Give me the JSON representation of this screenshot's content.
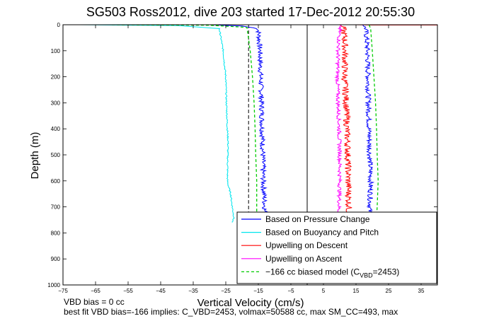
{
  "chart_data": {
    "type": "line",
    "title": "SG503 Ross2012, dive 203 started 17-Dec-2012 20:55:30",
    "xlabel": "Vertical Velocity (cm/s)",
    "ylabel": "Depth (m)",
    "xlim": [
      -75,
      40
    ],
    "ylim": [
      0,
      1000
    ],
    "y_reversed": true,
    "grid": false,
    "x_ticks": [
      -75,
      -65,
      -55,
      -45,
      -35,
      -25,
      -15,
      -5,
      5,
      15,
      25,
      35
    ],
    "y_ticks": [
      0,
      100,
      200,
      300,
      400,
      500,
      600,
      700,
      800,
      900,
      1000
    ],
    "legend_position": "bottom-right",
    "legend_entries": [
      {
        "label": "Based on Pressure Change",
        "color": "#0000ff",
        "style": "solid"
      },
      {
        "label": "Based on Buoyancy and Pitch",
        "color": "#00e5ee",
        "style": "solid"
      },
      {
        "label": "Upwelling on Descent",
        "color": "#ff0000",
        "style": "solid"
      },
      {
        "label": "Upwelling on Ascent",
        "color": "#ff00ff",
        "style": "solid"
      },
      {
        "label": "−166 cc biased model (C",
        "sub": "VBD",
        "suffix": "=2453)",
        "color": "#00cc00",
        "style": "dashed"
      }
    ],
    "reference_lines": [
      {
        "x": -18,
        "style": "dashed",
        "color": "#000000"
      },
      {
        "x": 0,
        "style": "solid",
        "color": "#000000"
      }
    ],
    "series": [
      {
        "name": "Based on Pressure Change (descent)",
        "color": "#0000ff",
        "noise": 0.8,
        "x": [
          -30,
          -20,
          -15,
          -14.5,
          -14.3,
          -14,
          -13.8,
          -13.6,
          -13.5,
          -13,
          -13.2
        ],
        "y": [
          0,
          5,
          15,
          100,
          200,
          300,
          400,
          500,
          600,
          700,
          760
        ]
      },
      {
        "name": "Based on Pressure Change (ascent)",
        "color": "#0000ff",
        "noise": 0.8,
        "x": [
          17,
          18,
          18.5,
          18.7,
          18.8,
          19,
          19.2,
          19.5,
          19.3,
          18.8
        ],
        "y": [
          0,
          15,
          100,
          200,
          300,
          400,
          500,
          600,
          700,
          760
        ]
      },
      {
        "name": "Based on Buoyancy and Pitch",
        "color": "#00e5ee",
        "noise": 0.2,
        "x": [
          -70,
          -40,
          -27,
          -26.5,
          -25.8,
          -25,
          -24.8,
          -24.5,
          -24.3,
          -24.4,
          -24.5,
          -24.2,
          -23.5,
          -23,
          -22.5,
          -23
        ],
        "y": [
          0,
          3,
          15,
          50,
          100,
          200,
          300,
          400,
          450,
          500,
          600,
          620,
          650,
          700,
          740,
          760
        ]
      },
      {
        "name": "Upwelling on Descent",
        "color": "#ff0000",
        "noise": 1.0,
        "x": [
          10,
          11,
          11.5,
          11.6,
          11.5,
          12,
          12.2,
          12.5,
          12.6,
          12.8,
          12.5
        ],
        "y": [
          0,
          10,
          50,
          100,
          200,
          300,
          400,
          500,
          600,
          700,
          760
        ]
      },
      {
        "name": "Upwelling on Ascent",
        "color": "#ff00ff",
        "noise": 0.6,
        "x": [
          10.5,
          10,
          9.5,
          9.3,
          9.5,
          9.8,
          10,
          10,
          9.8,
          9.5
        ],
        "y": [
          0,
          15,
          100,
          200,
          300,
          400,
          500,
          600,
          700,
          760
        ]
      },
      {
        "name": "Upwelling near surface",
        "color": "#ff0000",
        "noise": 0,
        "x": [
          14,
          20,
          40
        ],
        "y": [
          0,
          1,
          1
        ]
      },
      {
        "name": "-166 cc biased model (descent)",
        "color": "#00cc00",
        "dashed": true,
        "noise": 0,
        "x": [
          -60,
          -30,
          -18.5,
          -17.5,
          -16.8,
          -16.3,
          -16,
          -15.8,
          -15.5,
          -15.5
        ],
        "y": [
          0,
          2,
          10,
          100,
          200,
          300,
          400,
          500,
          600,
          760
        ]
      },
      {
        "name": "-166 cc biased model (ascent)",
        "color": "#00cc00",
        "dashed": true,
        "noise": 0,
        "x": [
          19,
          19.5,
          20,
          20.5,
          21,
          21.3,
          21.5,
          21.8,
          21.5,
          21.2
        ],
        "y": [
          0,
          15,
          100,
          200,
          300,
          400,
          500,
          600,
          700,
          760
        ]
      }
    ]
  },
  "footer": {
    "line1": "VBD bias = 0 cc",
    "line2": "best fit VBD bias=-166 implies: C_VBD=2453, volmax=50588 cc, max SM_CC=493, max"
  }
}
